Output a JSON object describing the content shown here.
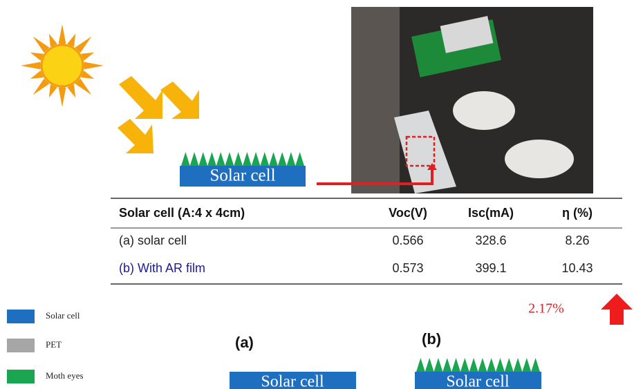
{
  "diagram": {
    "top_cell_label": "Solar cell"
  },
  "table": {
    "header": [
      "Solar cell   (A:4 x 4cm)",
      "Voc(V)",
      "Isc(mA)",
      "η (%)"
    ],
    "rows": [
      [
        "(a) solar cell",
        0.566,
        328.6,
        8.26
      ],
      [
        "(b) With AR film",
        0.573,
        399.1,
        10.43
      ]
    ]
  },
  "improvement": "2.17%",
  "legend": [
    {
      "label": "Solar cell",
      "color": "#1f6fc0"
    },
    {
      "label": "PET",
      "color": "#a6a6a6"
    },
    {
      "label": "Moth eyes",
      "color": "#1aa650"
    }
  ],
  "panels": [
    {
      "tag": "(a)",
      "cell_label": "Solar cell"
    },
    {
      "tag": "(b)",
      "cell_label": "Solar cell"
    }
  ]
}
